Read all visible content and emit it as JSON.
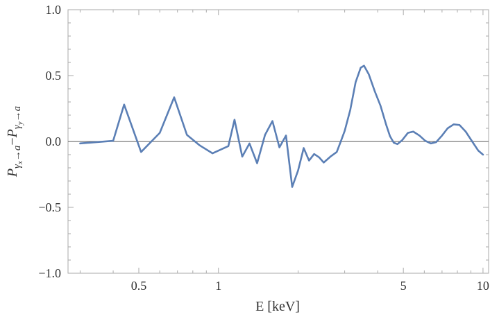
{
  "chart_data": {
    "type": "line",
    "title": "",
    "xlabel": "E [keV]",
    "ylabel": {
      "text": "Pγx→a−Pγy→a",
      "lhs_base": "P",
      "lhs_sub_main": "γ",
      "lhs_sub_sub": "x",
      "lhs_sub_arrow": "→a",
      "minus": "−",
      "rhs_base": "P",
      "rhs_sub_main": "γ",
      "rhs_sub_sub": "y",
      "rhs_sub_arrow": "→a"
    },
    "xscale": "log",
    "xlim": [
      0.27,
      10.5
    ],
    "ylim": [
      -1.0,
      1.0
    ],
    "grid": false,
    "frame": true,
    "zero_line": true,
    "colors": {
      "line": "#5b7fb5",
      "zero_line": "#777777",
      "frame": "#aaaaaa"
    },
    "xticks": [
      {
        "value": 0.5,
        "label": "0.5"
      },
      {
        "value": 1,
        "label": "1"
      },
      {
        "value": 5,
        "label": "5"
      },
      {
        "value": 10,
        "label": "10"
      }
    ],
    "yticks": [
      {
        "value": -1.0,
        "label": "−1.0"
      },
      {
        "value": -0.5,
        "label": "−0.5"
      },
      {
        "value": 0.0,
        "label": "0.0"
      },
      {
        "value": 0.5,
        "label": "0.5"
      },
      {
        "value": 1.0,
        "label": "1.0"
      }
    ],
    "series": [
      {
        "points": [
          [
            0.3,
            -0.015
          ],
          [
            0.4,
            0.005
          ],
          [
            0.44,
            0.28
          ],
          [
            0.51,
            -0.08
          ],
          [
            0.6,
            0.065
          ],
          [
            0.68,
            0.335
          ],
          [
            0.76,
            0.05
          ],
          [
            0.85,
            -0.03
          ],
          [
            0.95,
            -0.09
          ],
          [
            1.09,
            -0.035
          ],
          [
            1.15,
            0.165
          ],
          [
            1.23,
            -0.115
          ],
          [
            1.31,
            -0.015
          ],
          [
            1.4,
            -0.165
          ],
          [
            1.5,
            0.05
          ],
          [
            1.6,
            0.155
          ],
          [
            1.7,
            -0.045
          ],
          [
            1.8,
            0.045
          ],
          [
            1.9,
            -0.345
          ],
          [
            2.0,
            -0.22
          ],
          [
            2.1,
            -0.05
          ],
          [
            2.2,
            -0.145
          ],
          [
            2.3,
            -0.095
          ],
          [
            2.4,
            -0.12
          ],
          [
            2.5,
            -0.16
          ],
          [
            2.65,
            -0.115
          ],
          [
            2.8,
            -0.08
          ],
          [
            2.9,
            0.0
          ],
          [
            3.0,
            0.08
          ],
          [
            3.15,
            0.24
          ],
          [
            3.3,
            0.45
          ],
          [
            3.45,
            0.56
          ],
          [
            3.55,
            0.575
          ],
          [
            3.7,
            0.51
          ],
          [
            3.9,
            0.38
          ],
          [
            4.1,
            0.27
          ],
          [
            4.3,
            0.13
          ],
          [
            4.45,
            0.04
          ],
          [
            4.6,
            -0.01
          ],
          [
            4.75,
            -0.02
          ],
          [
            4.95,
            0.01
          ],
          [
            5.2,
            0.065
          ],
          [
            5.45,
            0.075
          ],
          [
            5.75,
            0.045
          ],
          [
            6.05,
            0.005
          ],
          [
            6.35,
            -0.015
          ],
          [
            6.65,
            -0.005
          ],
          [
            7.0,
            0.045
          ],
          [
            7.35,
            0.1
          ],
          [
            7.75,
            0.13
          ],
          [
            8.15,
            0.125
          ],
          [
            8.6,
            0.075
          ],
          [
            9.1,
            0.0
          ],
          [
            9.6,
            -0.07
          ],
          [
            10.0,
            -0.1
          ]
        ]
      }
    ]
  }
}
